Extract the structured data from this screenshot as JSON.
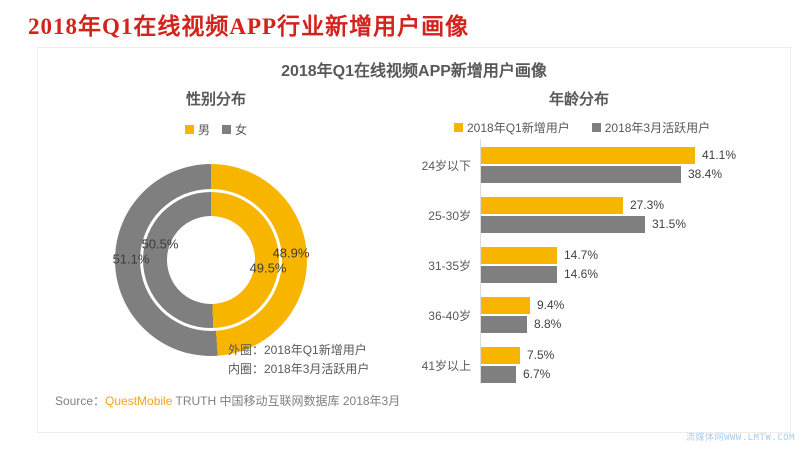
{
  "page": {
    "title": "2018年Q1在线视频APP行业新增用户画像",
    "watermark": "流媒体网WWW.LMTW.COM"
  },
  "card": {
    "title": "2018年Q1在线视频APP新增用户画像",
    "gender_section": {
      "header": "性别分布",
      "legend": [
        {
          "label": "男"
        },
        {
          "label": "女"
        }
      ],
      "notes": [
        "外圈：2018年Q1新增用户",
        "内圈：2018年3月活跃用户"
      ]
    },
    "age_section": {
      "header": "年龄分布",
      "legend": [
        {
          "label": "2018年Q1新增用户"
        },
        {
          "label": "2018年3月活跃用户"
        }
      ]
    },
    "source": {
      "label": "Source：",
      "brand": "QuestMobile",
      "text": " TRUTH 中国移动互联网数据库 2018年3月"
    }
  },
  "colors": {
    "accent_yellow": "#F7B500",
    "accent_gray": "#7F7F7F",
    "title_red": "#D2231D",
    "brand_orange": "#F5A21B"
  },
  "chart_data": [
    {
      "type": "pie",
      "subtype": "double-ring-donut",
      "title": "性别分布",
      "legend": [
        "男",
        "女"
      ],
      "legend_position": "top",
      "rings": [
        {
          "name": "外圈：2018年Q1新增用户",
          "slices": [
            {
              "label": "男",
              "value": 48.9
            },
            {
              "label": "女",
              "value": 51.1
            }
          ]
        },
        {
          "name": "内圈：2018年3月活跃用户",
          "slices": [
            {
              "label": "男",
              "value": 49.5
            },
            {
              "label": "女",
              "value": 50.5
            }
          ]
        }
      ],
      "colors": {
        "男": "#F7B500",
        "女": "#7F7F7F"
      }
    },
    {
      "type": "bar",
      "orientation": "horizontal",
      "title": "年龄分布",
      "categories": [
        "24岁以下",
        "25-30岁",
        "31-35岁",
        "36-40岁",
        "41岁以上"
      ],
      "series": [
        {
          "name": "2018年Q1新增用户",
          "color": "#F7B500",
          "values": [
            41.1,
            27.3,
            14.7,
            9.4,
            7.5
          ]
        },
        {
          "name": "2018年3月活跃用户",
          "color": "#7F7F7F",
          "values": [
            38.4,
            31.5,
            14.6,
            8.8,
            6.7
          ]
        }
      ],
      "value_suffix": "%",
      "xlim": [
        0,
        45
      ],
      "grid": false,
      "legend_position": "top"
    }
  ]
}
